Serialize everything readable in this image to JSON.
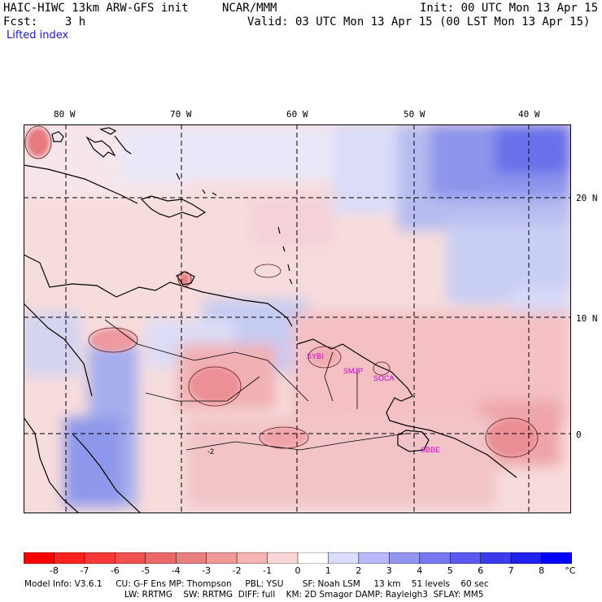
{
  "header": {
    "model": "HAIC-HIWC 13km ARW-GFS init",
    "org": "NCAR/MMM",
    "init": "Init: 00 UTC Mon 13 Apr 15",
    "fcst": "Fcst:    3 h",
    "valid": "Valid: 03 UTC Mon 13 Apr 15 (00 LST Mon 13 Apr 15)",
    "field": "Lifted index"
  },
  "map": {
    "lon_labels": [
      "80 W",
      "70 W",
      "60 W",
      "50 W",
      "40 W"
    ],
    "lat_labels": [
      "20 N",
      "10 N",
      "0"
    ],
    "stations": [
      "SYBI",
      "SMJP",
      "SOCA",
      "SBBE"
    ],
    "contour_label": "-2"
  },
  "colorbar": {
    "ticks": [
      "-8",
      "-7",
      "-6",
      "-5",
      "-4",
      "-3",
      "-2",
      "-1",
      "0",
      "1",
      "2",
      "3",
      "4",
      "5",
      "6",
      "7",
      "8"
    ],
    "unit": "°C",
    "colors": [
      "#ff0000",
      "#ff2020",
      "#f83838",
      "#f05050",
      "#ec6868",
      "#e88080",
      "#f09898",
      "#f4b4b4",
      "#fad6d6",
      "#ffffff",
      "#dcdcff",
      "#b8b8fa",
      "#9494f2",
      "#7878ee",
      "#5a5aee",
      "#3c3cee",
      "#2020f0",
      "#0000ff"
    ]
  },
  "footer": {
    "line1": "Model Info: V3.6.1     CU: G-F Ens MP: Thompson     PBL: YSU       SF: Noah LSM     13 km    51 levels    60 sec",
    "line2": "LW: RRTMG    SW: RRTMG  DIFF: full    KM: 2D Smagor DAMP: Rayleigh3  SFLAY: MM5"
  }
}
